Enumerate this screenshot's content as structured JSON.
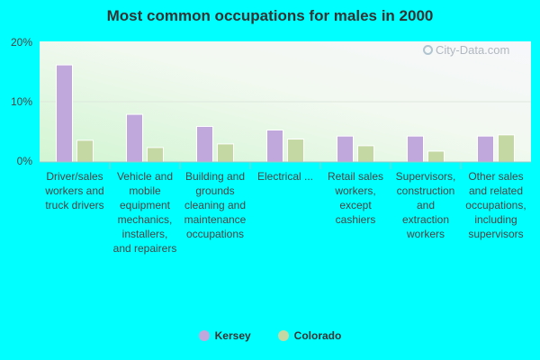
{
  "chart_data": {
    "type": "bar",
    "title": "Most common occupations for males in 2000",
    "categories": [
      "Driver/sales workers and truck drivers",
      "Vehicle and mobile equipment mechanics, installers, and repairers",
      "Building and grounds cleaning and maintenance occupations",
      "Electrical ...",
      "Retail sales workers, except cashiers",
      "Supervisors, construction and extraction workers",
      "Other sales and related occupations, including supervisors"
    ],
    "series": [
      {
        "name": "Kersey",
        "color": "#c0a8dc",
        "values": [
          16.1,
          7.9,
          5.9,
          5.3,
          4.3,
          4.3,
          4.3
        ]
      },
      {
        "name": "Colorado",
        "color": "#c4d8a4",
        "values": [
          3.6,
          2.4,
          3.0,
          3.8,
          2.7,
          1.8,
          4.5
        ]
      }
    ],
    "yticks": [
      "0%",
      "10%",
      "20%"
    ],
    "ylim": [
      0,
      20
    ],
    "legend_position": "bottom"
  },
  "watermark": {
    "text": "City-Data.com",
    "icon": "search-icon"
  }
}
